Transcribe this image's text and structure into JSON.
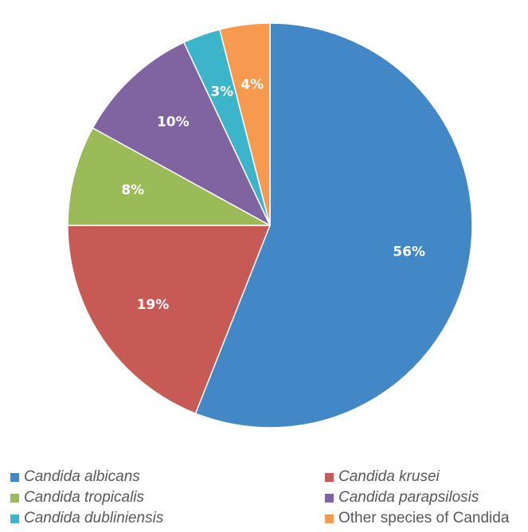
{
  "chart_data": {
    "type": "pie",
    "start_angle_deg": 0,
    "direction": "clockwise",
    "slices": [
      {
        "name": "Candida albicans",
        "value": 56,
        "label": "56%",
        "color": "#4287c6",
        "italic": true
      },
      {
        "name": "Candida krusei",
        "value": 19,
        "label": "19%",
        "color": "#c85a55",
        "italic": true
      },
      {
        "name": "Candida tropicalis",
        "value": 8,
        "label": "8%",
        "color": "#9bbb59",
        "italic": true
      },
      {
        "name": "Candida parapsilosis",
        "value": 10,
        "label": "10%",
        "color": "#8064a2",
        "italic": true
      },
      {
        "name": "Candida dubliniensis",
        "value": 3,
        "label": "3%",
        "color": "#3cb5cb",
        "italic": true
      },
      {
        "name": "Other species of Candida",
        "value": 4,
        "label": "4%",
        "color": "#f79a50",
        "italic": false
      }
    ],
    "legend_position": "bottom"
  }
}
